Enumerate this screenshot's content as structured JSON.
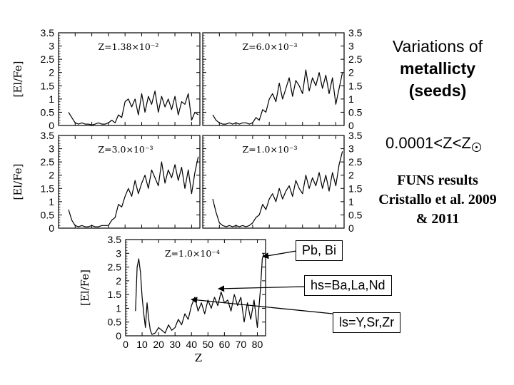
{
  "title": {
    "line1": "Variations of",
    "line2": "metallicty",
    "line3": "(seeds)"
  },
  "range_label": "0.0001<Z<Z",
  "funs": {
    "line1": "FUNS results",
    "line2": "Cristallo et al. 2009",
    "line3": "& 2011"
  },
  "callouts": {
    "pb": "Pb, Bi",
    "hs": "hs=Ba,La,Nd",
    "ls": "ls=Y,Sr,Zr"
  },
  "panel_ylabel": "[El/Fe]",
  "ytick_labels": [
    "0",
    "0.5",
    "1",
    "1.5",
    "2",
    "2.5",
    "3",
    "3.5"
  ],
  "chart_data": [
    {
      "type": "line",
      "annotation": "Z=1.38×10⁻²",
      "ylabel": "[El/Fe]",
      "ylim": [
        0,
        3.5
      ],
      "xlim": [
        0,
        85
      ],
      "x": [
        6,
        8,
        10,
        12,
        14,
        16,
        18,
        20,
        22,
        24,
        26,
        28,
        30,
        32,
        34,
        36,
        38,
        40,
        42,
        44,
        46,
        48,
        50,
        52,
        54,
        56,
        58,
        60,
        62,
        64,
        66,
        68,
        70,
        72,
        74,
        76,
        78,
        80,
        82,
        84
      ],
      "values": [
        0.5,
        0.3,
        0.1,
        0.05,
        0.1,
        0.05,
        0.05,
        0.02,
        0.05,
        0.1,
        0.05,
        0.05,
        0.1,
        0.2,
        0.1,
        0.4,
        0.3,
        0.9,
        1.0,
        0.7,
        1.0,
        0.4,
        1.2,
        0.5,
        1.1,
        0.8,
        1.3,
        0.5,
        1.1,
        0.7,
        1.0,
        0.6,
        1.1,
        0.4,
        0.9,
        0.8,
        1.2,
        0.2,
        0.5,
        0.4
      ]
    },
    {
      "type": "line",
      "annotation": "Z=6.0×10⁻³",
      "ylabel": "[El/Fe]",
      "ylim": [
        0,
        3.5
      ],
      "xlim": [
        0,
        85
      ],
      "x": [
        6,
        8,
        10,
        12,
        14,
        16,
        18,
        20,
        22,
        24,
        26,
        28,
        30,
        32,
        34,
        36,
        38,
        40,
        42,
        44,
        46,
        48,
        50,
        52,
        54,
        56,
        58,
        60,
        62,
        64,
        66,
        68,
        70,
        72,
        74,
        76,
        78,
        80,
        82,
        84
      ],
      "values": [
        0.4,
        0.2,
        0.1,
        0.05,
        0.05,
        0.1,
        0.05,
        0.1,
        0.05,
        0.1,
        0.1,
        0.05,
        0.1,
        0.3,
        0.2,
        0.6,
        0.5,
        1.0,
        1.2,
        0.9,
        1.6,
        1.0,
        1.4,
        1.8,
        1.1,
        1.7,
        1.5,
        1.2,
        2.1,
        1.3,
        1.8,
        1.5,
        2.0,
        1.4,
        1.9,
        1.2,
        1.8,
        0.8,
        1.4,
        2.0
      ]
    },
    {
      "type": "line",
      "annotation": "Z=3.0×10⁻³",
      "ylabel": "[El/Fe]",
      "ylim": [
        0,
        3.5
      ],
      "xlim": [
        0,
        85
      ],
      "x": [
        6,
        8,
        10,
        12,
        14,
        16,
        18,
        20,
        22,
        24,
        26,
        28,
        30,
        32,
        34,
        36,
        38,
        40,
        42,
        44,
        46,
        48,
        50,
        52,
        54,
        56,
        58,
        60,
        62,
        64,
        66,
        68,
        70,
        72,
        74,
        76,
        78,
        80,
        82,
        84
      ],
      "values": [
        0.7,
        0.3,
        0.1,
        0.05,
        0.1,
        0.05,
        0.05,
        0.1,
        0.05,
        0.05,
        0.1,
        0.1,
        0.1,
        0.3,
        0.4,
        0.9,
        0.8,
        1.2,
        1.5,
        1.2,
        1.8,
        1.3,
        1.7,
        2.0,
        1.5,
        2.2,
        1.9,
        1.6,
        2.5,
        1.7,
        2.2,
        1.9,
        2.4,
        1.8,
        2.3,
        1.5,
        2.2,
        1.3,
        2.1,
        2.7
      ]
    },
    {
      "type": "line",
      "annotation": "Z=1.0×10⁻³",
      "ylabel": "[El/Fe]",
      "ylim": [
        0,
        3.5
      ],
      "xlim": [
        0,
        85
      ],
      "x": [
        6,
        8,
        10,
        12,
        14,
        16,
        18,
        20,
        22,
        24,
        26,
        28,
        30,
        32,
        34,
        36,
        38,
        40,
        42,
        44,
        46,
        48,
        50,
        52,
        54,
        56,
        58,
        60,
        62,
        64,
        66,
        68,
        70,
        72,
        74,
        76,
        78,
        80,
        82,
        84
      ],
      "values": [
        1.1,
        0.6,
        0.2,
        0.1,
        0.05,
        0.1,
        0.05,
        0.1,
        0.05,
        0.1,
        0.05,
        0.1,
        0.2,
        0.4,
        0.5,
        0.9,
        0.7,
        1.1,
        1.3,
        1.0,
        1.5,
        1.1,
        1.4,
        1.6,
        1.2,
        1.8,
        1.5,
        1.3,
        2.0,
        1.5,
        1.9,
        1.6,
        2.1,
        1.5,
        2.0,
        1.4,
        2.1,
        1.6,
        2.4,
        2.9
      ]
    },
    {
      "type": "line",
      "annotation": "Z=1.0×10⁻⁴",
      "xlabel": "Z",
      "ylabel": "[El/Fe]",
      "ylim": [
        0,
        3.5
      ],
      "xlim": [
        0,
        85
      ],
      "xticks": [
        0,
        10,
        20,
        30,
        40,
        50,
        60,
        70,
        80
      ],
      "x": [
        6,
        7,
        8,
        9,
        10,
        11,
        12,
        13,
        14,
        15,
        16,
        18,
        20,
        22,
        24,
        26,
        28,
        30,
        32,
        34,
        36,
        38,
        40,
        42,
        44,
        46,
        48,
        50,
        52,
        54,
        56,
        58,
        60,
        62,
        64,
        66,
        68,
        70,
        72,
        74,
        76,
        78,
        80,
        82,
        83,
        84
      ],
      "values": [
        0.9,
        2.5,
        2.8,
        2.3,
        1.4,
        0.8,
        0.3,
        1.2,
        0.6,
        0.2,
        0.05,
        0.1,
        0.3,
        0.2,
        0.1,
        0.4,
        0.2,
        0.3,
        0.6,
        0.4,
        0.8,
        0.6,
        1.1,
        1.4,
        0.9,
        1.2,
        0.8,
        1.3,
        1.0,
        1.4,
        1.1,
        1.6,
        1.2,
        1.3,
        0.9,
        1.5,
        1.1,
        1.4,
        0.5,
        1.2,
        0.6,
        1.3,
        0.3,
        1.8,
        2.8,
        3.0
      ]
    }
  ]
}
